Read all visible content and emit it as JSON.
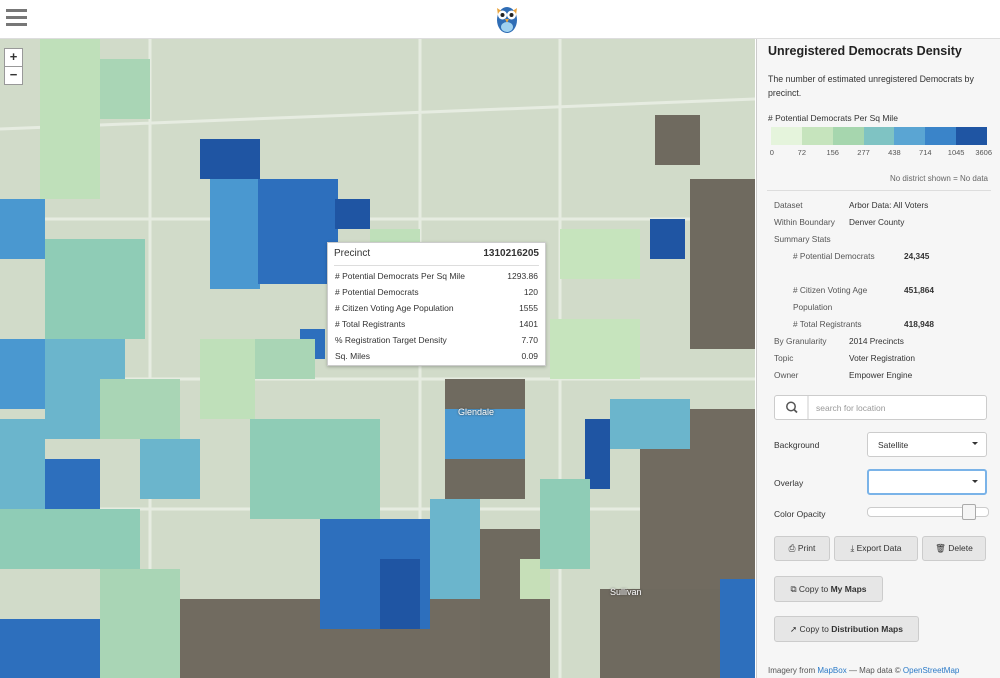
{
  "map": {
    "zoom_in": "+",
    "zoom_out": "−",
    "labels": [
      "Glendale",
      "Sullivan"
    ]
  },
  "tooltip": {
    "title": "Precinct",
    "id": "1310216205",
    "rows": [
      [
        "# Potential Democrats Per Sq Mile",
        "1293.86"
      ],
      [
        "# Potential Democrats",
        "120"
      ],
      [
        "# Citizen Voting Age Population",
        "1555"
      ],
      [
        "# Total Registrants",
        "1401"
      ],
      [
        "% Registration Target Density",
        "7.70"
      ],
      [
        "Sq. Miles",
        "0.09"
      ]
    ]
  },
  "sidebar": {
    "title": "Unregistered Democrats Density",
    "description": "The number of estimated unregistered Democrats by precinct.",
    "legend": {
      "label": "# Potential Democrats Per Sq Mile",
      "thresholds": [
        "0",
        "72",
        "156",
        "277",
        "438",
        "714",
        "1045",
        "3606"
      ],
      "note": "No district shown = No data"
    },
    "details": {
      "rows_top": [
        [
          "Dataset",
          "Arbor Data: All Voters"
        ],
        [
          "Within Boundary",
          "Denver County"
        ]
      ],
      "summary_label": "Summary Stats",
      "summary_rows": [
        [
          "# Potential Democrats",
          "24,345"
        ],
        [
          "# Citizen Voting Age Population",
          "451,864"
        ],
        [
          "# Total Registrants",
          "418,948"
        ]
      ],
      "rows_bottom": [
        [
          "By Granularity",
          "2014 Precincts"
        ],
        [
          "Topic",
          "Voter Registration"
        ],
        [
          "Owner",
          "Empower Engine"
        ]
      ]
    },
    "controls": {
      "search_placeholder": "search for location",
      "background_label": "Background",
      "background_value": "Satellite",
      "overlay_label": "Overlay",
      "opacity_label": "Color Opacity"
    },
    "buttons": {
      "print": "Print",
      "export": "Export Data",
      "delete": "Delete",
      "copy_my": {
        "prefix": "Copy to",
        "bold": "My Maps"
      },
      "copy_dist": {
        "prefix": "Copy to",
        "bold": "Distribution Maps"
      }
    },
    "footer": {
      "prefix": "Imagery from",
      "mapbox": "MapBox",
      "middle": "— Map data ©",
      "osm": "OpenStreetMap"
    }
  }
}
